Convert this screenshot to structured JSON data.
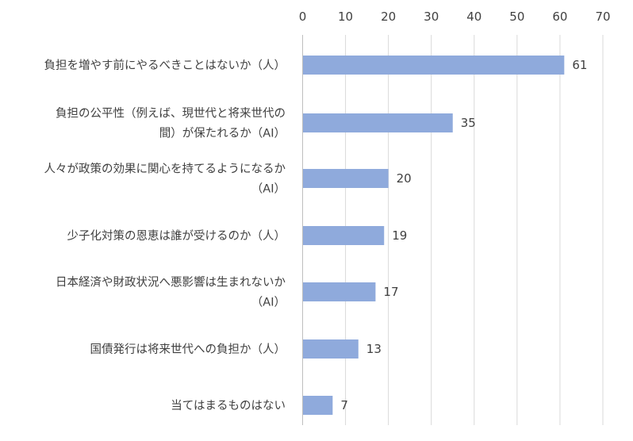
{
  "chart_data": {
    "type": "bar",
    "orientation": "horizontal",
    "title": "",
    "xlabel": "",
    "ylabel": "",
    "xlim": [
      0,
      70
    ],
    "ticks": [
      0,
      10,
      20,
      30,
      40,
      50,
      60,
      70
    ],
    "tick_position": "top",
    "grid": true,
    "legend": "none",
    "bar_color": "#8faadc",
    "categories": [
      [
        "負担を増やす前にやるべきことはないか（人）"
      ],
      [
        "負担の公平性（例えば、現世代と将来世代の",
        "間）が保たれるか（AI）"
      ],
      [
        "人々が政策の効果に関心を持てるようになるか",
        "（AI）"
      ],
      [
        "少子化対策の恩恵は誰が受けるのか（人）"
      ],
      [
        "日本経済や財政状況へ悪影響は生まれないか",
        "（AI）"
      ],
      [
        "国債発行は将来世代への負担か（人）"
      ],
      [
        "当てはまるものはない"
      ]
    ],
    "values": [
      61,
      35,
      20,
      19,
      17,
      13,
      7
    ]
  }
}
